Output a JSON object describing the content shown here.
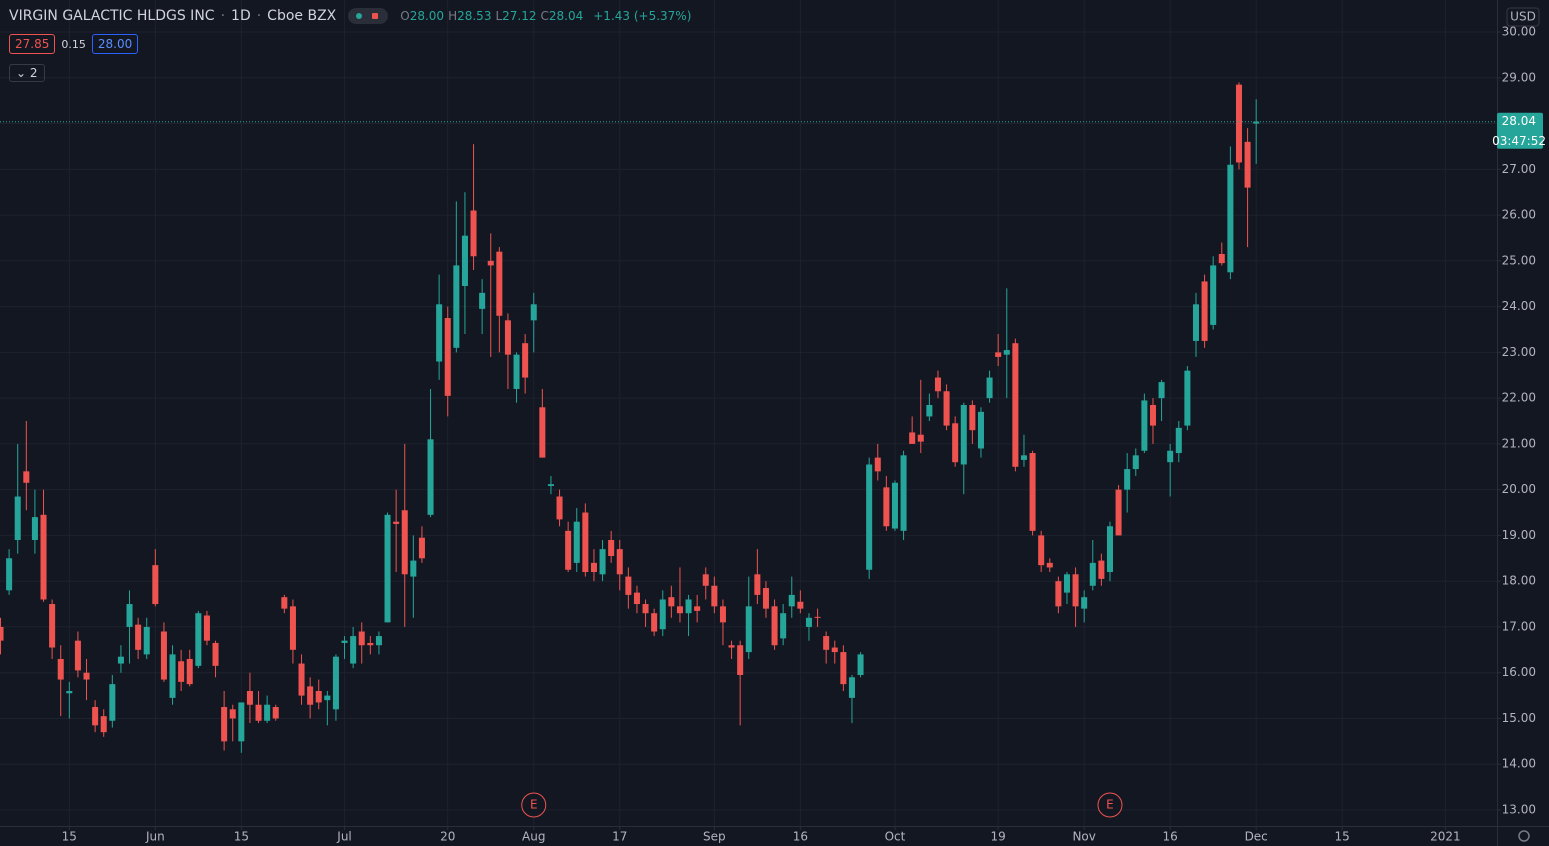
{
  "header": {
    "symbol": "VIRGIN GALACTIC HLDGS INC",
    "interval": "1D",
    "exchange": "Cboe BZX",
    "ohlc": [
      {
        "label": "O",
        "value": "28.00"
      },
      {
        "label": "H",
        "value": "28.53"
      },
      {
        "label": "L",
        "value": "27.12"
      },
      {
        "label": "C",
        "value": "28.04"
      }
    ],
    "change": "+1.43 (+5.37%)",
    "bid": "27.85",
    "spread": "0.15",
    "ask": "28.00",
    "indicators": "2"
  },
  "chart_data": {
    "type": "candlestick",
    "currency": "USD",
    "up_color": "#26a69a",
    "down_color": "#ef5350",
    "grid": true,
    "ylim": [
      12.65,
      30.7
    ],
    "yticks": [
      {
        "value": 13,
        "label": "13.00"
      },
      {
        "value": 14,
        "label": "14.00"
      },
      {
        "value": 15,
        "label": "15.00"
      },
      {
        "value": 16,
        "label": "16.00"
      },
      {
        "value": 17,
        "label": "17.00"
      },
      {
        "value": 18,
        "label": "18.00"
      },
      {
        "value": 19,
        "label": "19.00"
      },
      {
        "value": 20,
        "label": "20.00"
      },
      {
        "value": 21,
        "label": "21.00"
      },
      {
        "value": 22,
        "label": "22.00"
      },
      {
        "value": 23,
        "label": "23.00"
      },
      {
        "value": 24,
        "label": "24.00"
      },
      {
        "value": 25,
        "label": "25.00"
      },
      {
        "value": 26,
        "label": "26.00"
      },
      {
        "value": 27,
        "label": "27.00"
      },
      {
        "value": 28,
        "label": "28.00"
      },
      {
        "value": 29,
        "label": "29.00"
      },
      {
        "value": 30,
        "label": "30.00"
      }
    ],
    "xlim": [
      -0.06,
      174.0
    ],
    "xticks": [
      {
        "value": 8,
        "label": "15"
      },
      {
        "value": 18,
        "label": "Jun"
      },
      {
        "value": 28,
        "label": "15"
      },
      {
        "value": 40,
        "label": "Jul"
      },
      {
        "value": 52,
        "label": "20"
      },
      {
        "value": 62,
        "label": "Aug"
      },
      {
        "value": 72,
        "label": "17"
      },
      {
        "value": 83,
        "label": "Sep"
      },
      {
        "value": 93,
        "label": "16"
      },
      {
        "value": 104,
        "label": "Oct"
      },
      {
        "value": 116,
        "label": "19"
      },
      {
        "value": 126,
        "label": "Nov"
      },
      {
        "value": 136,
        "label": "16"
      },
      {
        "value": 146,
        "label": "Dec"
      },
      {
        "value": 156,
        "label": "15"
      },
      {
        "value": 168,
        "label": "2021"
      }
    ],
    "series": [
      {
        "open": [
          17.0,
          17.8,
          18.9,
          20.4,
          18.9,
          19.45,
          17.5,
          16.3,
          15.55,
          16.7,
          16.0,
          15.25,
          15.05,
          14.95,
          16.2,
          17.0,
          17.05,
          16.4,
          18.35,
          16.9,
          15.45,
          16.25,
          16.3,
          16.15,
          17.25,
          16.65,
          15.25,
          15.2,
          14.5,
          15.6,
          15.3,
          14.95,
          15.25,
          17.65,
          17.45,
          16.2,
          15.7,
          15.6,
          15.4,
          15.2,
          16.65,
          16.2,
          16.9,
          16.65,
          16.6,
          17.1,
          19.3,
          19.55,
          18.1,
          18.95,
          19.45,
          22.8,
          23.75,
          23.1,
          24.45,
          26.1,
          23.95,
          25.0,
          25.2,
          23.7,
          22.2,
          23.2,
          23.7,
          21.8,
          20.08,
          19.85,
          19.1,
          18.4,
          19.5,
          18.4,
          18.15,
          18.9,
          18.7,
          18.1,
          17.75,
          17.5,
          17.3,
          16.95,
          17.65,
          17.45,
          17.3,
          17.45,
          18.15,
          17.9,
          17.45,
          16.6,
          16.6,
          16.45,
          18.15,
          17.85,
          17.45,
          16.75,
          17.45,
          17.55,
          17.0,
          17.22,
          16.8,
          16.55,
          16.45,
          15.45,
          15.95,
          18.25,
          20.7,
          20.05,
          19.15,
          19.1,
          21.25,
          21.2,
          21.6,
          22.45,
          22.15,
          21.45,
          20.55,
          21.85,
          20.9,
          22.0,
          23.0,
          22.95,
          23.2,
          20.65,
          20.8,
          19.0,
          18.4,
          18.0,
          17.75,
          18.15,
          17.4,
          17.9,
          18.45,
          18.2,
          20.0,
          20.0,
          20.45,
          20.85,
          21.85,
          22.0,
          20.6,
          20.8,
          21.4,
          23.25,
          24.55,
          23.6,
          25.15,
          24.75,
          28.85,
          27.6,
          28.0
        ],
        "high": [
          17.2,
          18.7,
          21.0,
          21.5,
          20.0,
          20.0,
          17.6,
          16.6,
          15.8,
          16.9,
          16.3,
          15.4,
          15.2,
          15.95,
          16.6,
          17.8,
          17.2,
          17.2,
          18.7,
          17.1,
          16.6,
          16.5,
          16.5,
          17.35,
          17.35,
          16.7,
          15.6,
          15.3,
          15.35,
          16.0,
          15.6,
          15.5,
          15.3,
          17.7,
          17.6,
          16.4,
          15.9,
          15.85,
          15.6,
          16.4,
          16.8,
          17.0,
          17.1,
          16.8,
          16.9,
          19.5,
          20.0,
          21.0,
          19.0,
          19.2,
          22.2,
          24.7,
          24.0,
          26.3,
          26.5,
          27.55,
          24.6,
          25.6,
          25.3,
          23.85,
          23.0,
          23.4,
          24.3,
          22.2,
          20.3,
          20.0,
          19.3,
          19.6,
          19.7,
          18.7,
          18.9,
          19.1,
          18.9,
          18.3,
          17.9,
          17.6,
          17.4,
          17.8,
          17.9,
          18.3,
          17.7,
          17.7,
          18.3,
          18.1,
          17.6,
          16.7,
          16.7,
          18.1,
          18.7,
          18.0,
          17.6,
          17.5,
          18.1,
          17.8,
          17.3,
          17.4,
          16.9,
          16.7,
          16.6,
          15.95,
          16.45,
          20.7,
          21.0,
          20.3,
          20.2,
          20.85,
          21.6,
          22.4,
          22.1,
          22.6,
          22.3,
          21.6,
          21.9,
          21.95,
          21.8,
          22.6,
          23.4,
          24.4,
          23.3,
          21.2,
          20.85,
          19.1,
          18.5,
          18.1,
          18.2,
          18.3,
          17.8,
          18.9,
          18.6,
          19.3,
          20.1,
          20.8,
          20.9,
          22.1,
          22.0,
          22.4,
          21.0,
          21.5,
          22.7,
          24.3,
          24.7,
          25.1,
          25.4,
          27.5,
          28.9,
          27.9,
          28.53
        ],
        "low": [
          16.4,
          17.7,
          18.6,
          19.55,
          18.6,
          17.55,
          16.3,
          15.05,
          15.0,
          15.9,
          15.4,
          14.7,
          14.6,
          14.8,
          16.0,
          16.2,
          16.3,
          16.3,
          17.45,
          15.8,
          15.3,
          15.6,
          15.7,
          16.1,
          16.6,
          15.9,
          14.3,
          14.5,
          14.25,
          14.9,
          14.9,
          14.9,
          14.95,
          17.3,
          16.2,
          15.3,
          15.0,
          15.2,
          14.85,
          14.95,
          16.3,
          16.1,
          16.2,
          16.4,
          16.4,
          17.1,
          18.2,
          17.0,
          17.2,
          18.4,
          19.4,
          22.4,
          21.6,
          23.0,
          23.4,
          24.8,
          23.4,
          22.9,
          23.0,
          22.2,
          21.9,
          22.1,
          23.0,
          20.7,
          19.9,
          19.2,
          18.2,
          18.2,
          18.1,
          18.0,
          18.0,
          18.4,
          17.8,
          17.4,
          17.3,
          17.0,
          16.8,
          16.8,
          17.2,
          17.1,
          16.8,
          17.1,
          17.6,
          17.3,
          16.6,
          16.3,
          14.85,
          16.3,
          17.5,
          17.2,
          16.5,
          16.6,
          17.2,
          17.3,
          16.7,
          17.0,
          16.2,
          16.2,
          15.6,
          14.9,
          15.9,
          18.05,
          20.2,
          19.1,
          19.1,
          18.9,
          21.0,
          20.8,
          21.5,
          22.0,
          21.3,
          20.5,
          19.9,
          21.0,
          20.7,
          21.9,
          22.7,
          22.0,
          20.4,
          20.5,
          19.0,
          18.2,
          18.2,
          17.3,
          17.5,
          17.0,
          17.1,
          17.8,
          17.9,
          18.0,
          19.0,
          19.5,
          20.3,
          20.8,
          21.0,
          21.5,
          19.85,
          20.6,
          21.3,
          22.9,
          23.1,
          23.5,
          24.9,
          24.6,
          27.0,
          25.3,
          27.12
        ],
        "close": [
          16.7,
          18.5,
          19.85,
          20.15,
          19.4,
          17.6,
          16.55,
          15.85,
          15.6,
          16.05,
          15.85,
          14.85,
          14.7,
          15.75,
          16.35,
          17.5,
          16.5,
          17.0,
          17.5,
          15.85,
          16.4,
          15.8,
          15.75,
          17.3,
          16.7,
          16.15,
          14.5,
          15.0,
          15.35,
          15.3,
          14.95,
          15.3,
          15.0,
          17.4,
          16.5,
          15.5,
          15.3,
          15.35,
          15.5,
          16.35,
          16.7,
          16.8,
          16.6,
          16.6,
          16.8,
          19.45,
          19.25,
          18.15,
          18.45,
          18.5,
          21.1,
          24.05,
          22.05,
          24.9,
          25.55,
          25.1,
          24.3,
          24.9,
          23.8,
          22.95,
          22.95,
          22.45,
          24.05,
          20.7,
          20.12,
          19.35,
          18.25,
          19.3,
          18.2,
          18.2,
          18.7,
          18.55,
          18.15,
          17.7,
          17.5,
          17.3,
          16.9,
          17.6,
          17.45,
          17.3,
          17.6,
          17.35,
          17.9,
          17.45,
          17.1,
          16.55,
          15.95,
          17.45,
          17.7,
          17.4,
          16.6,
          17.3,
          17.7,
          17.4,
          17.2,
          17.2,
          16.5,
          16.45,
          15.75,
          15.9,
          16.4,
          20.55,
          20.4,
          19.2,
          20.15,
          20.75,
          21.0,
          21.05,
          21.85,
          22.15,
          21.4,
          20.6,
          21.85,
          21.3,
          21.7,
          22.45,
          22.9,
          23.05,
          20.5,
          20.75,
          19.1,
          18.35,
          18.3,
          17.45,
          18.15,
          17.45,
          17.65,
          18.4,
          18.05,
          19.2,
          19.0,
          20.45,
          20.75,
          21.95,
          21.4,
          22.35,
          20.85,
          21.35,
          22.6,
          24.05,
          23.25,
          24.9,
          24.95,
          27.1,
          27.15,
          26.6,
          28.04
        ]
      }
    ],
    "last_price": {
      "value": 28.04,
      "label": "28.04",
      "countdown": "03:47:52"
    },
    "events": [
      {
        "x": 62,
        "label": "E"
      },
      {
        "x": 129,
        "label": "E"
      }
    ]
  }
}
